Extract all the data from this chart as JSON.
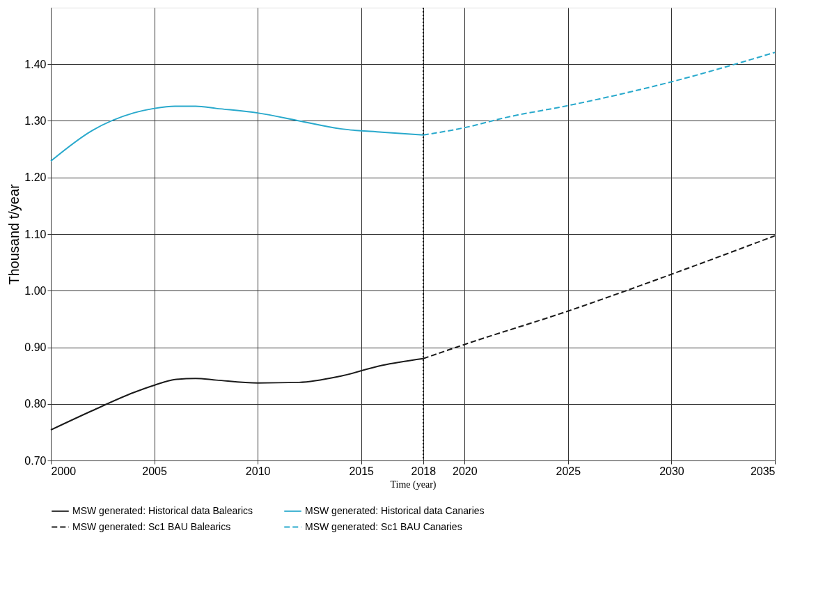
{
  "chart_data": {
    "type": "line",
    "xlabel": "Time (year)",
    "ylabel": "Thousand  t/year",
    "xlim": [
      2000,
      2035
    ],
    "ylim": [
      0.7,
      1.5
    ],
    "xticks": [
      2000,
      2005,
      2010,
      2015,
      2018,
      2020,
      2025,
      2030,
      2035
    ],
    "yticks": [
      {
        "value": 0.7,
        "label": "0.70"
      },
      {
        "value": 0.8,
        "label": "0.80"
      },
      {
        "value": 0.9,
        "label": "0.90"
      },
      {
        "value": 1.0,
        "label": "1.00"
      },
      {
        "value": 1.1,
        "label": "1.10"
      },
      {
        "value": 1.2,
        "label": "1.20"
      },
      {
        "value": 1.3,
        "label": "1.30"
      },
      {
        "value": 1.4,
        "label": "1.40"
      }
    ],
    "grid": true,
    "legend": "bottom",
    "marker": "none",
    "ref_lines": [
      {
        "axis": "x",
        "value": 2018,
        "color": "#000000",
        "line_style": "dotted"
      }
    ],
    "series": [
      {
        "name": "MSW generated: Historical data Balearics",
        "color": "#1a1a1a",
        "line_style": "solid",
        "x": [
          2000,
          2002,
          2004,
          2005,
          2006,
          2007,
          2008,
          2010,
          2012,
          2014,
          2016,
          2018
        ],
        "values": [
          0.754,
          0.788,
          0.82,
          0.833,
          0.843,
          0.845,
          0.842,
          0.837,
          0.838,
          0.849,
          0.868,
          0.88
        ]
      },
      {
        "name": "MSW generated: Historical data Canaries",
        "color": "#29a9cc",
        "line_style": "solid",
        "x": [
          2000,
          2002,
          2004,
          2005,
          2006,
          2007,
          2008,
          2010,
          2012,
          2014,
          2016,
          2018
        ],
        "values": [
          1.229,
          1.283,
          1.314,
          1.322,
          1.326,
          1.326,
          1.322,
          1.314,
          1.3,
          1.286,
          1.28,
          1.275
        ]
      },
      {
        "name": "MSW generated: Sc1 BAU Balearics",
        "color": "#1a1a1a",
        "line_style": "dashed",
        "x": [
          2018,
          2020,
          2025,
          2030,
          2035
        ],
        "values": [
          0.88,
          0.905,
          0.964,
          1.029,
          1.097
        ]
      },
      {
        "name": "MSW generated: Sc1 BAU Canaries",
        "color": "#29a9cc",
        "line_style": "dashed",
        "x": [
          2018,
          2020,
          2022,
          2025,
          2030,
          2035
        ],
        "values": [
          1.275,
          1.288,
          1.306,
          1.327,
          1.369,
          1.421
        ]
      }
    ]
  }
}
